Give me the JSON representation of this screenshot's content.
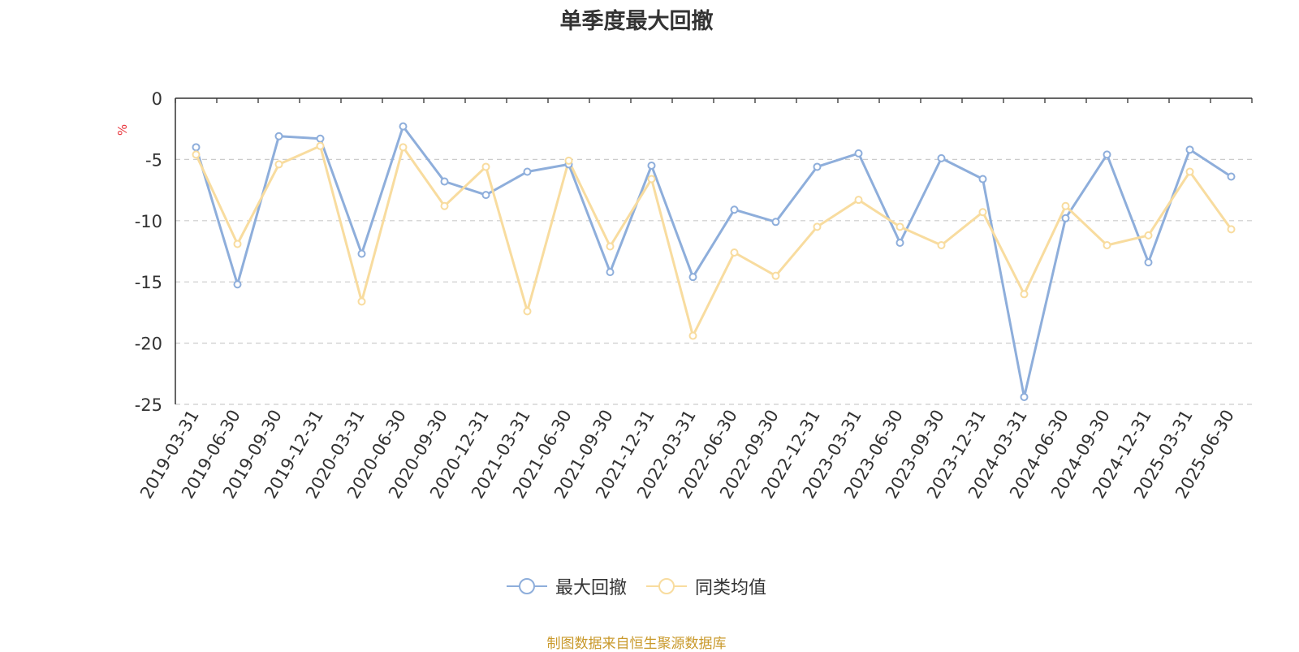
{
  "chart_data": {
    "type": "line",
    "title": "单季度最大回撤",
    "ylabel": "%",
    "ylim": [
      -25,
      0
    ],
    "yticks": [
      0,
      -5,
      -10,
      -15,
      -20,
      -25
    ],
    "grid": true,
    "legend_position": "bottom-center",
    "x": [
      "2019-03-31",
      "2019-06-30",
      "2019-09-30",
      "2019-12-31",
      "2020-03-31",
      "2020-06-30",
      "2020-09-30",
      "2020-12-31",
      "2021-03-31",
      "2021-06-30",
      "2021-09-30",
      "2021-12-31",
      "2022-03-31",
      "2022-06-30",
      "2022-09-30",
      "2022-12-31",
      "2023-03-31",
      "2023-06-30",
      "2023-09-30",
      "2023-12-31",
      "2024-03-31",
      "2024-06-30",
      "2024-09-30",
      "2024-12-31",
      "2025-03-31",
      "2025-06-30"
    ],
    "series": [
      {
        "name": "最大回撤",
        "color": "#8eaedb",
        "values": [
          -4.0,
          -15.2,
          -3.1,
          -3.3,
          -12.7,
          -2.3,
          -6.8,
          -7.9,
          -6.0,
          -5.4,
          -14.2,
          -5.5,
          -14.6,
          -9.1,
          -10.1,
          -5.6,
          -4.5,
          -11.8,
          -4.9,
          -6.6,
          -24.4,
          -9.8,
          -4.6,
          -13.4,
          -4.2,
          -6.4
        ]
      },
      {
        "name": "同类均值",
        "color": "#f8dc9f",
        "values": [
          -4.6,
          -11.9,
          -5.4,
          -3.9,
          -16.6,
          -4.0,
          -8.8,
          -5.6,
          -17.4,
          -5.1,
          -12.1,
          -6.6,
          -19.4,
          -12.6,
          -14.5,
          -10.5,
          -8.3,
          -10.5,
          -12.0,
          -9.3,
          -16.0,
          -8.8,
          -12.0,
          -11.2,
          -6.0,
          -10.7
        ]
      }
    ]
  },
  "source_note": "制图数据来自恒生聚源数据库"
}
